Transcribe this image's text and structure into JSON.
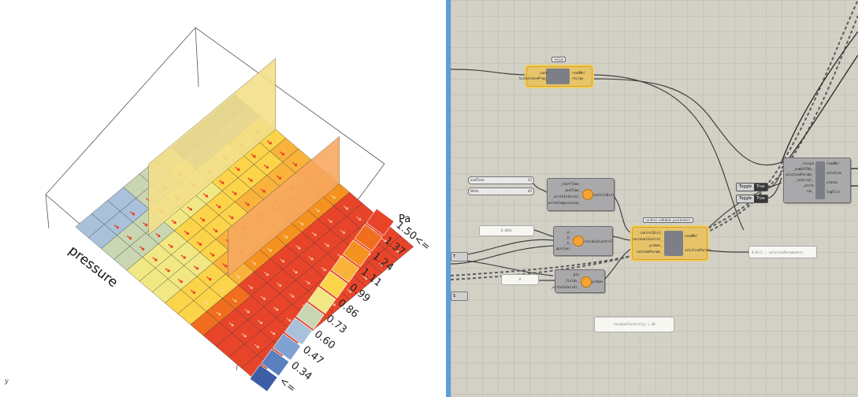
{
  "viewport": {
    "axis_label": "pressure",
    "legend_unit": "Pa",
    "legend_labels": [
      "1.50<=",
      "1.37",
      "1.24",
      "1.11",
      "0.99",
      "0.86",
      "0.73",
      "0.60",
      "0.47",
      "0.34",
      "<="
    ],
    "legend_colors": [
      "#e8442a",
      "#f06e1e",
      "#f5921f",
      "#f9b33a",
      "#fbd449",
      "#f2e883",
      "#c9d6b2",
      "#a9c1da",
      "#7fa2d2",
      "#5a80c0",
      "#3c5ea6"
    ],
    "corner_mark": "y"
  },
  "canvas": {
    "recipe_group": {
      "tag": "recipe",
      "inputs": [
        "_case",
        "turbulenceProp_"
      ],
      "outputs": [
        "readMe!",
        "recipe"
      ]
    },
    "slider_endtime": {
      "name": "endTime",
      "value": "25"
    },
    "slider_write": {
      "name": "Write",
      "value": "40"
    },
    "control_dict": {
      "inputs": [
        "_startTime_",
        "_endTime_",
        "_writeInterval_",
        "_writeCompression_"
      ],
      "title": "controlDict"
    },
    "panel_residual": {
      "text": "0.0001"
    },
    "residual_control": {
      "inputs": [
        "_p_",
        "_U_",
        "_k_",
        "_epsilon_"
      ],
      "title": "residualControl"
    },
    "panel_probes": {
      "text": "0"
    },
    "probes": {
      "inputs": [
        "_pts",
        "_fields_",
        "_writeInterval_"
      ],
      "title": "probes"
    },
    "runtime_group": {
      "tag": "runtime editable parameters",
      "inputs": [
        "controlDict_",
        "residualControl_",
        "probes_",
        "runtimeParams_"
      ],
      "outputs": [
        "readMe!",
        "solutionParams"
      ]
    },
    "solution": {
      "inputs": [
        "_recipe",
        "_numOfCPUs_",
        "_solutionParams_",
        "_interval_",
        "_write",
        "run_"
      ],
      "outputs": [
        "readMe!",
        "solution",
        "status",
        "logFile"
      ]
    },
    "toggle1": {
      "label": "Toggle",
      "value": "True"
    },
    "toggle2": {
      "label": "Toggle",
      "value": "True"
    },
    "panel_output": {
      "text": "0.0(1) ; solutionParameters"
    },
    "panel_bottom": {
      "text": "residualControl|p = 20"
    },
    "left_param_a": "T",
    "left_param_b": "S"
  }
}
